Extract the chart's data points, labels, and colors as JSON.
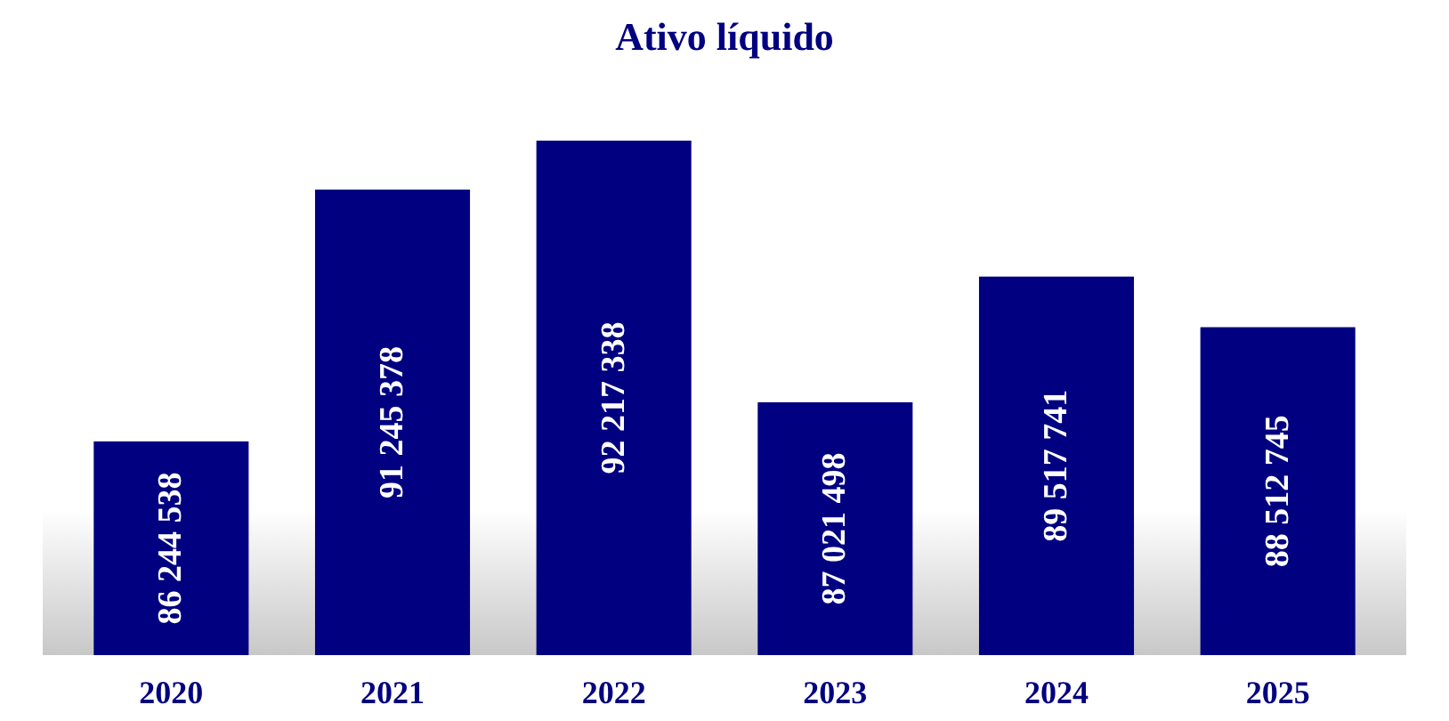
{
  "chart_data": {
    "type": "bar",
    "title": "Ativo líquido",
    "categories": [
      "2020",
      "2021",
      "2022",
      "2023",
      "2024",
      "2025"
    ],
    "values": [
      86244538,
      91245378,
      92217338,
      87021498,
      89517741,
      88512745
    ],
    "value_labels": [
      "86 244 538",
      "91 245 378",
      "92 217 338",
      "87 021 498",
      "89 517 741",
      "88 512 745"
    ],
    "color": "#000080",
    "ylim": [
      82000000,
      92217338
    ]
  }
}
